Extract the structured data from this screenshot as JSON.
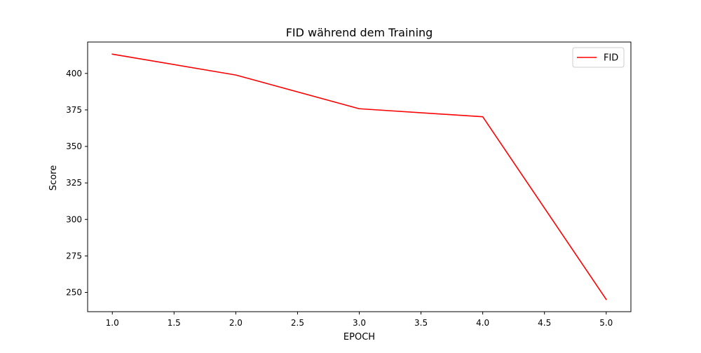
{
  "chart_data": {
    "type": "line",
    "title": "FID während dem Training",
    "xlabel": "EPOCH",
    "ylabel": "Score",
    "x": [
      1.0,
      2.0,
      3.0,
      4.0,
      5.0
    ],
    "series": [
      {
        "name": "FID",
        "color": "#ff0000",
        "values": [
          413.2,
          398.9,
          375.8,
          370.3,
          245.2
        ]
      }
    ],
    "xlim": [
      0.8,
      5.2
    ],
    "ylim": [
      236.8,
      421.5
    ],
    "xticks": [
      1.0,
      1.5,
      2.0,
      2.5,
      3.0,
      3.5,
      4.0,
      4.5,
      5.0
    ],
    "xtick_labels": [
      "1.0",
      "1.5",
      "2.0",
      "2.5",
      "3.0",
      "3.5",
      "4.0",
      "4.5",
      "5.0"
    ],
    "yticks": [
      250,
      275,
      300,
      325,
      350,
      375,
      400
    ],
    "ytick_labels": [
      "250",
      "275",
      "300",
      "325",
      "350",
      "375",
      "400"
    ],
    "grid": false,
    "legend": "top-right"
  }
}
